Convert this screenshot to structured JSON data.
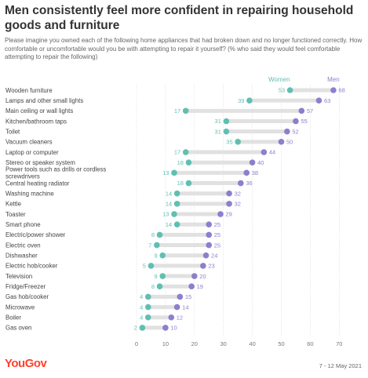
{
  "header": {
    "title": "Men consistently feel more confident in repairing household goods and furniture",
    "subtitle": "Please imagine you owned each of the following home appliances that had broken down and no longer functioned correctly. How comfortable or uncomfortable would you be with attempting to repair it yourself? (% who said they would feel comfortable attempting to repair the following)"
  },
  "footer": {
    "brand": "YouGov",
    "date": "7 - 12 May 2021"
  },
  "colors": {
    "women": "#5fbfb1",
    "men": "#8b7fce",
    "connector": "#e1e1e1"
  },
  "chart_data": {
    "type": "dumbbell",
    "categories": [
      "Wooden furniture",
      "Lamps and other small lights",
      "Main ceiling or wall lights",
      "Kitchen/bathroom taps",
      "Toilet",
      "Vacuum cleaners",
      "Laptop or computer",
      "Stereo or speaker system",
      "Power tools such as drills or cordless screwdrivers",
      "Central heating radiator",
      "Washing machine",
      "Kettle",
      "Toaster",
      "Smart phone",
      "Electric/power shower",
      "Electric oven",
      "Dishwasher",
      "Electric hob/cooker",
      "Television",
      "Fridge/Freezer",
      "Gas hob/cooker",
      "Microwave",
      "Boiler",
      "Gas oven"
    ],
    "series": [
      {
        "name": "Women",
        "values": [
          53,
          39,
          17,
          31,
          31,
          35,
          17,
          18,
          13,
          18,
          14,
          14,
          13,
          14,
          8,
          7,
          9,
          5,
          9,
          8,
          4,
          4,
          4,
          2
        ]
      },
      {
        "name": "Men",
        "values": [
          68,
          63,
          57,
          55,
          52,
          50,
          44,
          40,
          38,
          36,
          32,
          32,
          29,
          25,
          25,
          25,
          24,
          23,
          20,
          19,
          15,
          14,
          12,
          10
        ]
      }
    ],
    "xticks": [
      "0",
      "10",
      "20",
      "30",
      "40",
      "50",
      "60",
      "70"
    ],
    "xlim": [
      0,
      70
    ],
    "grid": true,
    "legend": "top-right"
  }
}
